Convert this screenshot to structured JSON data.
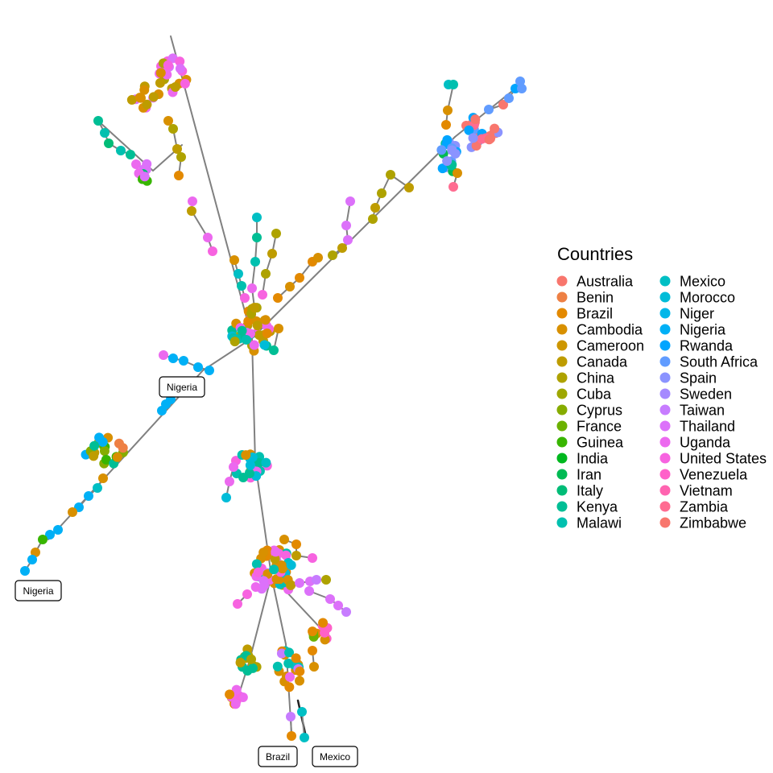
{
  "legend": {
    "title": "Countries",
    "items": [
      {
        "name": "Australia",
        "color": "#F8766D"
      },
      {
        "name": "Benin",
        "color": "#EE8044"
      },
      {
        "name": "Brazil",
        "color": "#E38900"
      },
      {
        "name": "Cambodia",
        "color": "#D89000"
      },
      {
        "name": "Cameroon",
        "color": "#CD9600"
      },
      {
        "name": "Canada",
        "color": "#BE9C00"
      },
      {
        "name": "China",
        "color": "#AEA200"
      },
      {
        "name": "Cuba",
        "color": "#9EA700"
      },
      {
        "name": "Cyprus",
        "color": "#86AC00"
      },
      {
        "name": "France",
        "color": "#6BB100"
      },
      {
        "name": "Guinea",
        "color": "#38B500"
      },
      {
        "name": "India",
        "color": "#00B81F"
      },
      {
        "name": "Iran",
        "color": "#00BA53"
      },
      {
        "name": "Italy",
        "color": "#00BC77"
      },
      {
        "name": "Kenya",
        "color": "#00BE95"
      },
      {
        "name": "Malawi",
        "color": "#00C0AF"
      },
      {
        "name": "Mexico",
        "color": "#00BFC4"
      },
      {
        "name": "Morocco",
        "color": "#00BCD8"
      },
      {
        "name": "Niger",
        "color": "#00B7E9"
      },
      {
        "name": "Nigeria",
        "color": "#00B0F6"
      },
      {
        "name": "Rwanda",
        "color": "#00A5FF"
      },
      {
        "name": "South Africa",
        "color": "#619CFF"
      },
      {
        "name": "Spain",
        "color": "#8B93FF"
      },
      {
        "name": "Sweden",
        "color": "#A58AFF"
      },
      {
        "name": "Taiwan",
        "color": "#C77CFF"
      },
      {
        "name": "Thailand",
        "color": "#DC71FA"
      },
      {
        "name": "Uganda",
        "color": "#EC69EF"
      },
      {
        "name": "United States",
        "color": "#F763E0"
      },
      {
        "name": "Venezuela",
        "color": "#FF61C9"
      },
      {
        "name": "Vietnam",
        "color": "#FF64B0"
      },
      {
        "name": "Zambia",
        "color": "#FF6C91"
      },
      {
        "name": "Zimbabwe",
        "color": "#F8766D"
      }
    ]
  },
  "callouts": [
    "Nigeria",
    "Nigeria",
    "Brazil",
    "Mexico"
  ],
  "edge_color": "#808080"
}
